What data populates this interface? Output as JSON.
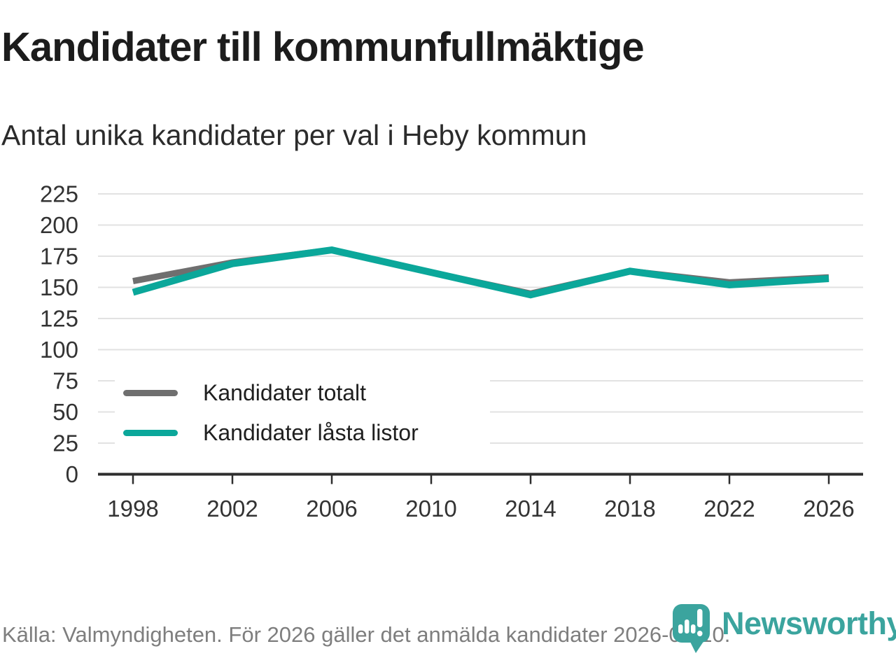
{
  "header": {
    "title": "Kandidater till kommunfullmäktige",
    "subtitle": "Antal unika kandidater per val i Heby kommun"
  },
  "chart_data": {
    "type": "line",
    "x": [
      1998,
      2002,
      2006,
      2010,
      2014,
      2018,
      2022,
      2026
    ],
    "x_tick_labels": [
      "1998",
      "2002",
      "2006",
      "2010",
      "2014",
      "2018",
      "2022",
      "2026"
    ],
    "series": [
      {
        "name": "Kandidater totalt",
        "color": "#6f6f6f",
        "stroke_width": 9,
        "values": [
          155,
          170,
          180,
          162,
          145,
          163,
          154,
          158
        ]
      },
      {
        "name": "Kandidater låsta listor",
        "color": "#0ba79a",
        "stroke_width": 10,
        "values": [
          146,
          169,
          180,
          162,
          144,
          163,
          152,
          157
        ]
      }
    ],
    "ylim": [
      0,
      225
    ],
    "ytick_step": 25,
    "ytick_labels": [
      "0",
      "25",
      "50",
      "75",
      "100",
      "125",
      "150",
      "175",
      "200",
      "225"
    ],
    "grid": "horizontal",
    "legend_position": "inside-left",
    "colors": {
      "gridline": "#e2e2e2",
      "axis_line": "#2e2e2e",
      "tick": "#2e2e2e",
      "tick_label": "#333333"
    }
  },
  "footer": {
    "source": "Källa: Valmyndigheten. För 2026 gäller det anmälda kandidater 2026-04-10."
  },
  "branding": {
    "logo_text": "Newsworthy",
    "logo_color": "#3ba49e",
    "logo_icon": "newsworthy-pin-barchart-icon"
  }
}
